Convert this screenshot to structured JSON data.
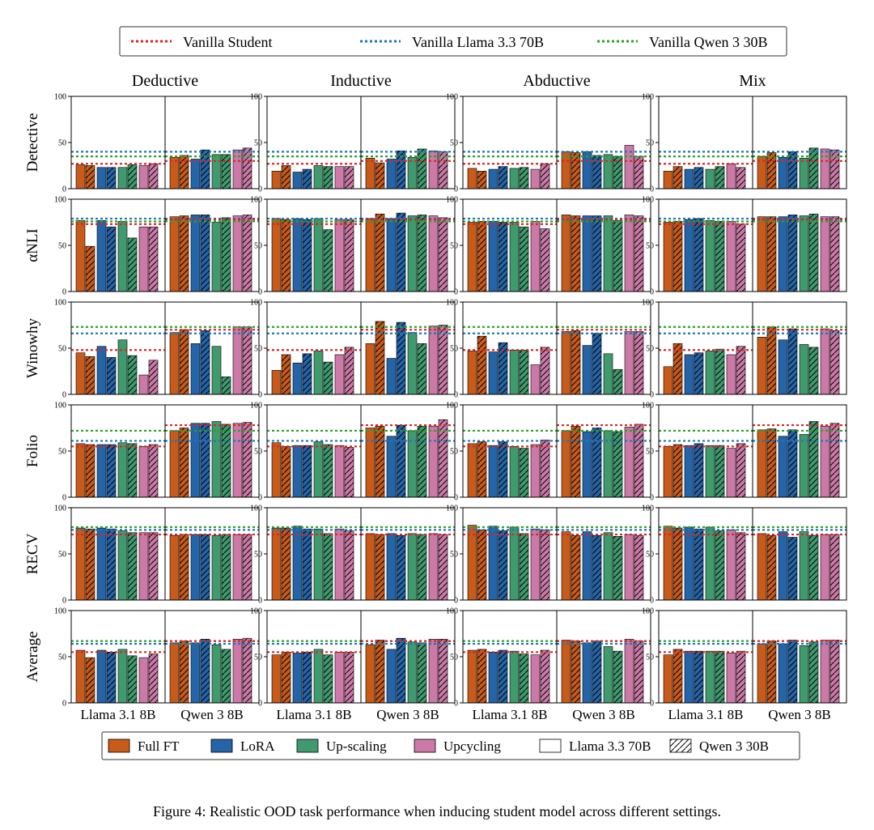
{
  "chart_data": {
    "type": "bar",
    "legend_top": [
      {
        "name": "Vanilla Student",
        "color": "#d62728",
        "style": "dotted"
      },
      {
        "name": "Vanilla Llama 3.3 70B",
        "color": "#1f77b4",
        "style": "dotted"
      },
      {
        "name": "Vanilla Qwen 3 30B",
        "color": "#2ca02c",
        "style": "dotted"
      }
    ],
    "legend_bottom": [
      {
        "name": "Full FT",
        "color": "#c85a1a",
        "hatch": false
      },
      {
        "name": "LoRA",
        "color": "#2464a8",
        "hatch": false
      },
      {
        "name": "Up-scaling",
        "color": "#3f9a6e",
        "hatch": false
      },
      {
        "name": "Upcycling",
        "color": "#cc79a7",
        "hatch": false
      },
      {
        "name": "Llama 3.3 70B",
        "color": "#ffffff",
        "hatch": false
      },
      {
        "name": "Qwen 3 30B",
        "color": "#ffffff",
        "hatch": true
      }
    ],
    "columns": [
      "Deductive",
      "Inductive",
      "Abductive",
      "Mix"
    ],
    "rows": [
      "Detective",
      "αNLI",
      "Winowhy",
      "Folio",
      "RECV",
      "Average"
    ],
    "subgroups": [
      "Llama 3.1 8B",
      "Qwen 3 8B"
    ],
    "ylim": [
      0,
      100
    ],
    "yticks": [
      0,
      50,
      100
    ],
    "methods": [
      "Full FT",
      "LoRA",
      "Up-scaling",
      "Upcycling"
    ],
    "method_colors": [
      "#c85a1a",
      "#2464a8",
      "#3f9a6e",
      "#cc79a7"
    ],
    "ref_line_colors": {
      "student": "#d62728",
      "llama70": "#1f77b4",
      "qwen30": "#2ca02c"
    },
    "ref_lines": [
      {
        "Llama 3.1 8B": {
          "student": 27,
          "llama70": 40,
          "qwen30": 35
        },
        "Qwen 3 8B": {
          "student": 30,
          "llama70": 40,
          "qwen30": 35
        }
      },
      {
        "Llama 3.1 8B": {
          "student": 73,
          "llama70": 79,
          "qwen30": 76
        },
        "Qwen 3 8B": {
          "student": 78,
          "llama70": 79,
          "qwen30": 76
        }
      },
      {
        "Llama 3.1 8B": {
          "student": 48,
          "llama70": 66,
          "qwen30": 73
        },
        "Qwen 3 8B": {
          "student": 70,
          "llama70": 66,
          "qwen30": 73
        }
      },
      {
        "Llama 3.1 8B": {
          "student": 55,
          "llama70": 61,
          "qwen30": 72
        },
        "Qwen 3 8B": {
          "student": 78,
          "llama70": 61,
          "qwen30": 72
        }
      },
      {
        "Llama 3.1 8B": {
          "student": 71,
          "llama70": 76,
          "qwen30": 79
        },
        "Qwen 3 8B": {
          "student": 71,
          "llama70": 76,
          "qwen30": 79
        }
      },
      {
        "Llama 3.1 8B": {
          "student": 55,
          "llama70": 64,
          "qwen30": 67
        },
        "Qwen 3 8B": {
          "student": 67,
          "llama70": 64,
          "qwen30": 67
        }
      }
    ],
    "values": [
      [
        {
          "Llama 3.1 8B": [
            [
              26,
              25
            ],
            [
              23,
              23
            ],
            [
              23,
              26
            ],
            [
              25,
              27
            ]
          ],
          "Qwen 3 8B": [
            [
              34,
              36
            ],
            [
              32,
              42
            ],
            [
              37,
              37
            ],
            [
              42,
              44
            ]
          ]
        },
        {
          "Llama 3.1 8B": [
            [
              19,
              25
            ],
            [
              18,
              21
            ],
            [
              25,
              24
            ],
            [
              24,
              24
            ]
          ],
          "Qwen 3 8B": [
            [
              33,
              28
            ],
            [
              32,
              41
            ],
            [
              34,
              43
            ],
            [
              41,
              40
            ]
          ]
        },
        {
          "Llama 3.1 8B": [
            [
              22,
              19
            ],
            [
              21,
              24
            ],
            [
              22,
              23
            ],
            [
              21,
              27
            ]
          ],
          "Qwen 3 8B": [
            [
              40,
              39
            ],
            [
              40,
              36
            ],
            [
              37,
              35
            ],
            [
              47,
              35
            ]
          ]
        },
        {
          "Llama 3.1 8B": [
            [
              19,
              24
            ],
            [
              21,
              23
            ],
            [
              21,
              24
            ],
            [
              27,
              23
            ]
          ],
          "Qwen 3 8B": [
            [
              35,
              39
            ],
            [
              34,
              40
            ],
            [
              33,
              44
            ],
            [
              43,
              42
            ]
          ]
        }
      ],
      [
        {
          "Llama 3.1 8B": [
            [
              77,
              49
            ],
            [
              77,
              70
            ],
            [
              76,
              58
            ],
            [
              70,
              70
            ]
          ],
          "Qwen 3 8B": [
            [
              81,
              82
            ],
            [
              83,
              83
            ],
            [
              75,
              80
            ],
            [
              82,
              83
            ]
          ]
        },
        {
          "Llama 3.1 8B": [
            [
              79,
              78
            ],
            [
              79,
              78
            ],
            [
              79,
              67
            ],
            [
              78,
              78
            ]
          ],
          "Qwen 3 8B": [
            [
              79,
              84
            ],
            [
              79,
              85
            ],
            [
              82,
              83
            ],
            [
              82,
              80
            ]
          ]
        },
        {
          "Llama 3.1 8B": [
            [
              75,
              76
            ],
            [
              76,
              75
            ],
            [
              75,
              70
            ],
            [
              76,
              68
            ]
          ],
          "Qwen 3 8B": [
            [
              83,
              82
            ],
            [
              82,
              82
            ],
            [
              82,
              77
            ],
            [
              83,
              82
            ]
          ]
        },
        {
          "Llama 3.1 8B": [
            [
              75,
              76
            ],
            [
              78,
              79
            ],
            [
              77,
              76
            ],
            [
              76,
              73
            ]
          ],
          "Qwen 3 8B": [
            [
              81,
              81
            ],
            [
              81,
              83
            ],
            [
              82,
              84
            ],
            [
              81,
              81
            ]
          ]
        }
      ],
      [
        {
          "Llama 3.1 8B": [
            [
              45,
              41
            ],
            [
              52,
              40
            ],
            [
              59,
              42
            ],
            [
              21,
              37
            ]
          ],
          "Qwen 3 8B": [
            [
              67,
              70
            ],
            [
              55,
              69
            ],
            [
              52,
              19
            ],
            [
              73,
              73
            ]
          ]
        },
        {
          "Llama 3.1 8B": [
            [
              26,
              43
            ],
            [
              34,
              44
            ],
            [
              47,
              35
            ],
            [
              43,
              51
            ]
          ],
          "Qwen 3 8B": [
            [
              55,
              79
            ],
            [
              39,
              78
            ],
            [
              67,
              55
            ],
            [
              74,
              75
            ]
          ]
        },
        {
          "Llama 3.1 8B": [
            [
              47,
              63
            ],
            [
              46,
              56
            ],
            [
              48,
              48
            ],
            [
              32,
              51
            ]
          ],
          "Qwen 3 8B": [
            [
              68,
              69
            ],
            [
              53,
              66
            ],
            [
              44,
              27
            ],
            [
              68,
              68
            ]
          ]
        },
        {
          "Llama 3.1 8B": [
            [
              30,
              55
            ],
            [
              43,
              45
            ],
            [
              47,
              49
            ],
            [
              43,
              52
            ]
          ],
          "Qwen 3 8B": [
            [
              62,
              73
            ],
            [
              59,
              71
            ],
            [
              54,
              51
            ],
            [
              71,
              69
            ]
          ]
        }
      ],
      [
        {
          "Llama 3.1 8B": [
            [
              58,
              57
            ],
            [
              57,
              57
            ],
            [
              59,
              58
            ],
            [
              55,
              57
            ]
          ],
          "Qwen 3 8B": [
            [
              72,
              75
            ],
            [
              80,
              80
            ],
            [
              82,
              79
            ],
            [
              80,
              81
            ]
          ]
        },
        {
          "Llama 3.1 8B": [
            [
              59,
              55
            ],
            [
              56,
              56
            ],
            [
              60,
              57
            ],
            [
              56,
              54
            ]
          ],
          "Qwen 3 8B": [
            [
              75,
              77
            ],
            [
              66,
              78
            ],
            [
              72,
              77
            ],
            [
              77,
              84
            ]
          ]
        },
        {
          "Llama 3.1 8B": [
            [
              58,
              60
            ],
            [
              56,
              60
            ],
            [
              55,
              53
            ],
            [
              57,
              62
            ]
          ],
          "Qwen 3 8B": [
            [
              72,
              77
            ],
            [
              71,
              75
            ],
            [
              72,
              71
            ],
            [
              76,
              79
            ]
          ]
        },
        {
          "Llama 3.1 8B": [
            [
              55,
              57
            ],
            [
              56,
              58
            ],
            [
              56,
              56
            ],
            [
              53,
              58
            ]
          ],
          "Qwen 3 8B": [
            [
              73,
              74
            ],
            [
              66,
              73
            ],
            [
              68,
              82
            ],
            [
              77,
              80
            ]
          ]
        }
      ],
      [
        {
          "Llama 3.1 8B": [
            [
              78,
              77
            ],
            [
              78,
              77
            ],
            [
              75,
              73
            ],
            [
              73,
              73
            ]
          ],
          "Qwen 3 8B": [
            [
              70,
              71
            ],
            [
              71,
              71
            ],
            [
              70,
              71
            ],
            [
              71,
              71
            ]
          ]
        },
        {
          "Llama 3.1 8B": [
            [
              78,
              78
            ],
            [
              80,
              77
            ],
            [
              77,
              72
            ],
            [
              77,
              75
            ]
          ],
          "Qwen 3 8B": [
            [
              72,
              71
            ],
            [
              72,
              70
            ],
            [
              72,
              71
            ],
            [
              72,
              71
            ]
          ]
        },
        {
          "Llama 3.1 8B": [
            [
              81,
              76
            ],
            [
              80,
              75
            ],
            [
              79,
              72
            ],
            [
              77,
              76
            ]
          ],
          "Qwen 3 8B": [
            [
              74,
              70
            ],
            [
              74,
              70
            ],
            [
              73,
              69
            ],
            [
              71,
              70
            ]
          ]
        },
        {
          "Llama 3.1 8B": [
            [
              80,
              78
            ],
            [
              79,
              77
            ],
            [
              79,
              75
            ],
            [
              76,
              73
            ]
          ],
          "Qwen 3 8B": [
            [
              72,
              70
            ],
            [
              74,
              68
            ],
            [
              74,
              70
            ],
            [
              71,
              71
            ]
          ]
        }
      ],
      [
        {
          "Llama 3.1 8B": [
            [
              57,
              49
            ],
            [
              57,
              55
            ],
            [
              58,
              51
            ],
            [
              49,
              53
            ]
          ],
          "Qwen 3 8B": [
            [
              65,
              67
            ],
            [
              65,
              69
            ],
            [
              63,
              58
            ],
            [
              69,
              70
            ]
          ]
        },
        {
          "Llama 3.1 8B": [
            [
              52,
              55
            ],
            [
              54,
              55
            ],
            [
              58,
              52
            ],
            [
              55,
              55
            ]
          ],
          "Qwen 3 8B": [
            [
              63,
              68
            ],
            [
              58,
              70
            ],
            [
              66,
              65
            ],
            [
              69,
              69
            ]
          ]
        },
        {
          "Llama 3.1 8B": [
            [
              57,
              58
            ],
            [
              55,
              57
            ],
            [
              56,
              53
            ],
            [
              52,
              57
            ]
          ],
          "Qwen 3 8B": [
            [
              68,
              67
            ],
            [
              65,
              67
            ],
            [
              61,
              56
            ],
            [
              69,
              67
            ]
          ]
        },
        {
          "Llama 3.1 8B": [
            [
              52,
              58
            ],
            [
              56,
              56
            ],
            [
              56,
              56
            ],
            [
              54,
              56
            ]
          ],
          "Qwen 3 8B": [
            [
              64,
              67
            ],
            [
              64,
              68
            ],
            [
              62,
              66
            ],
            [
              68,
              68
            ]
          ]
        }
      ]
    ]
  },
  "caption": "Figure 4: Realistic OOD task performance when inducing student model across different settings."
}
